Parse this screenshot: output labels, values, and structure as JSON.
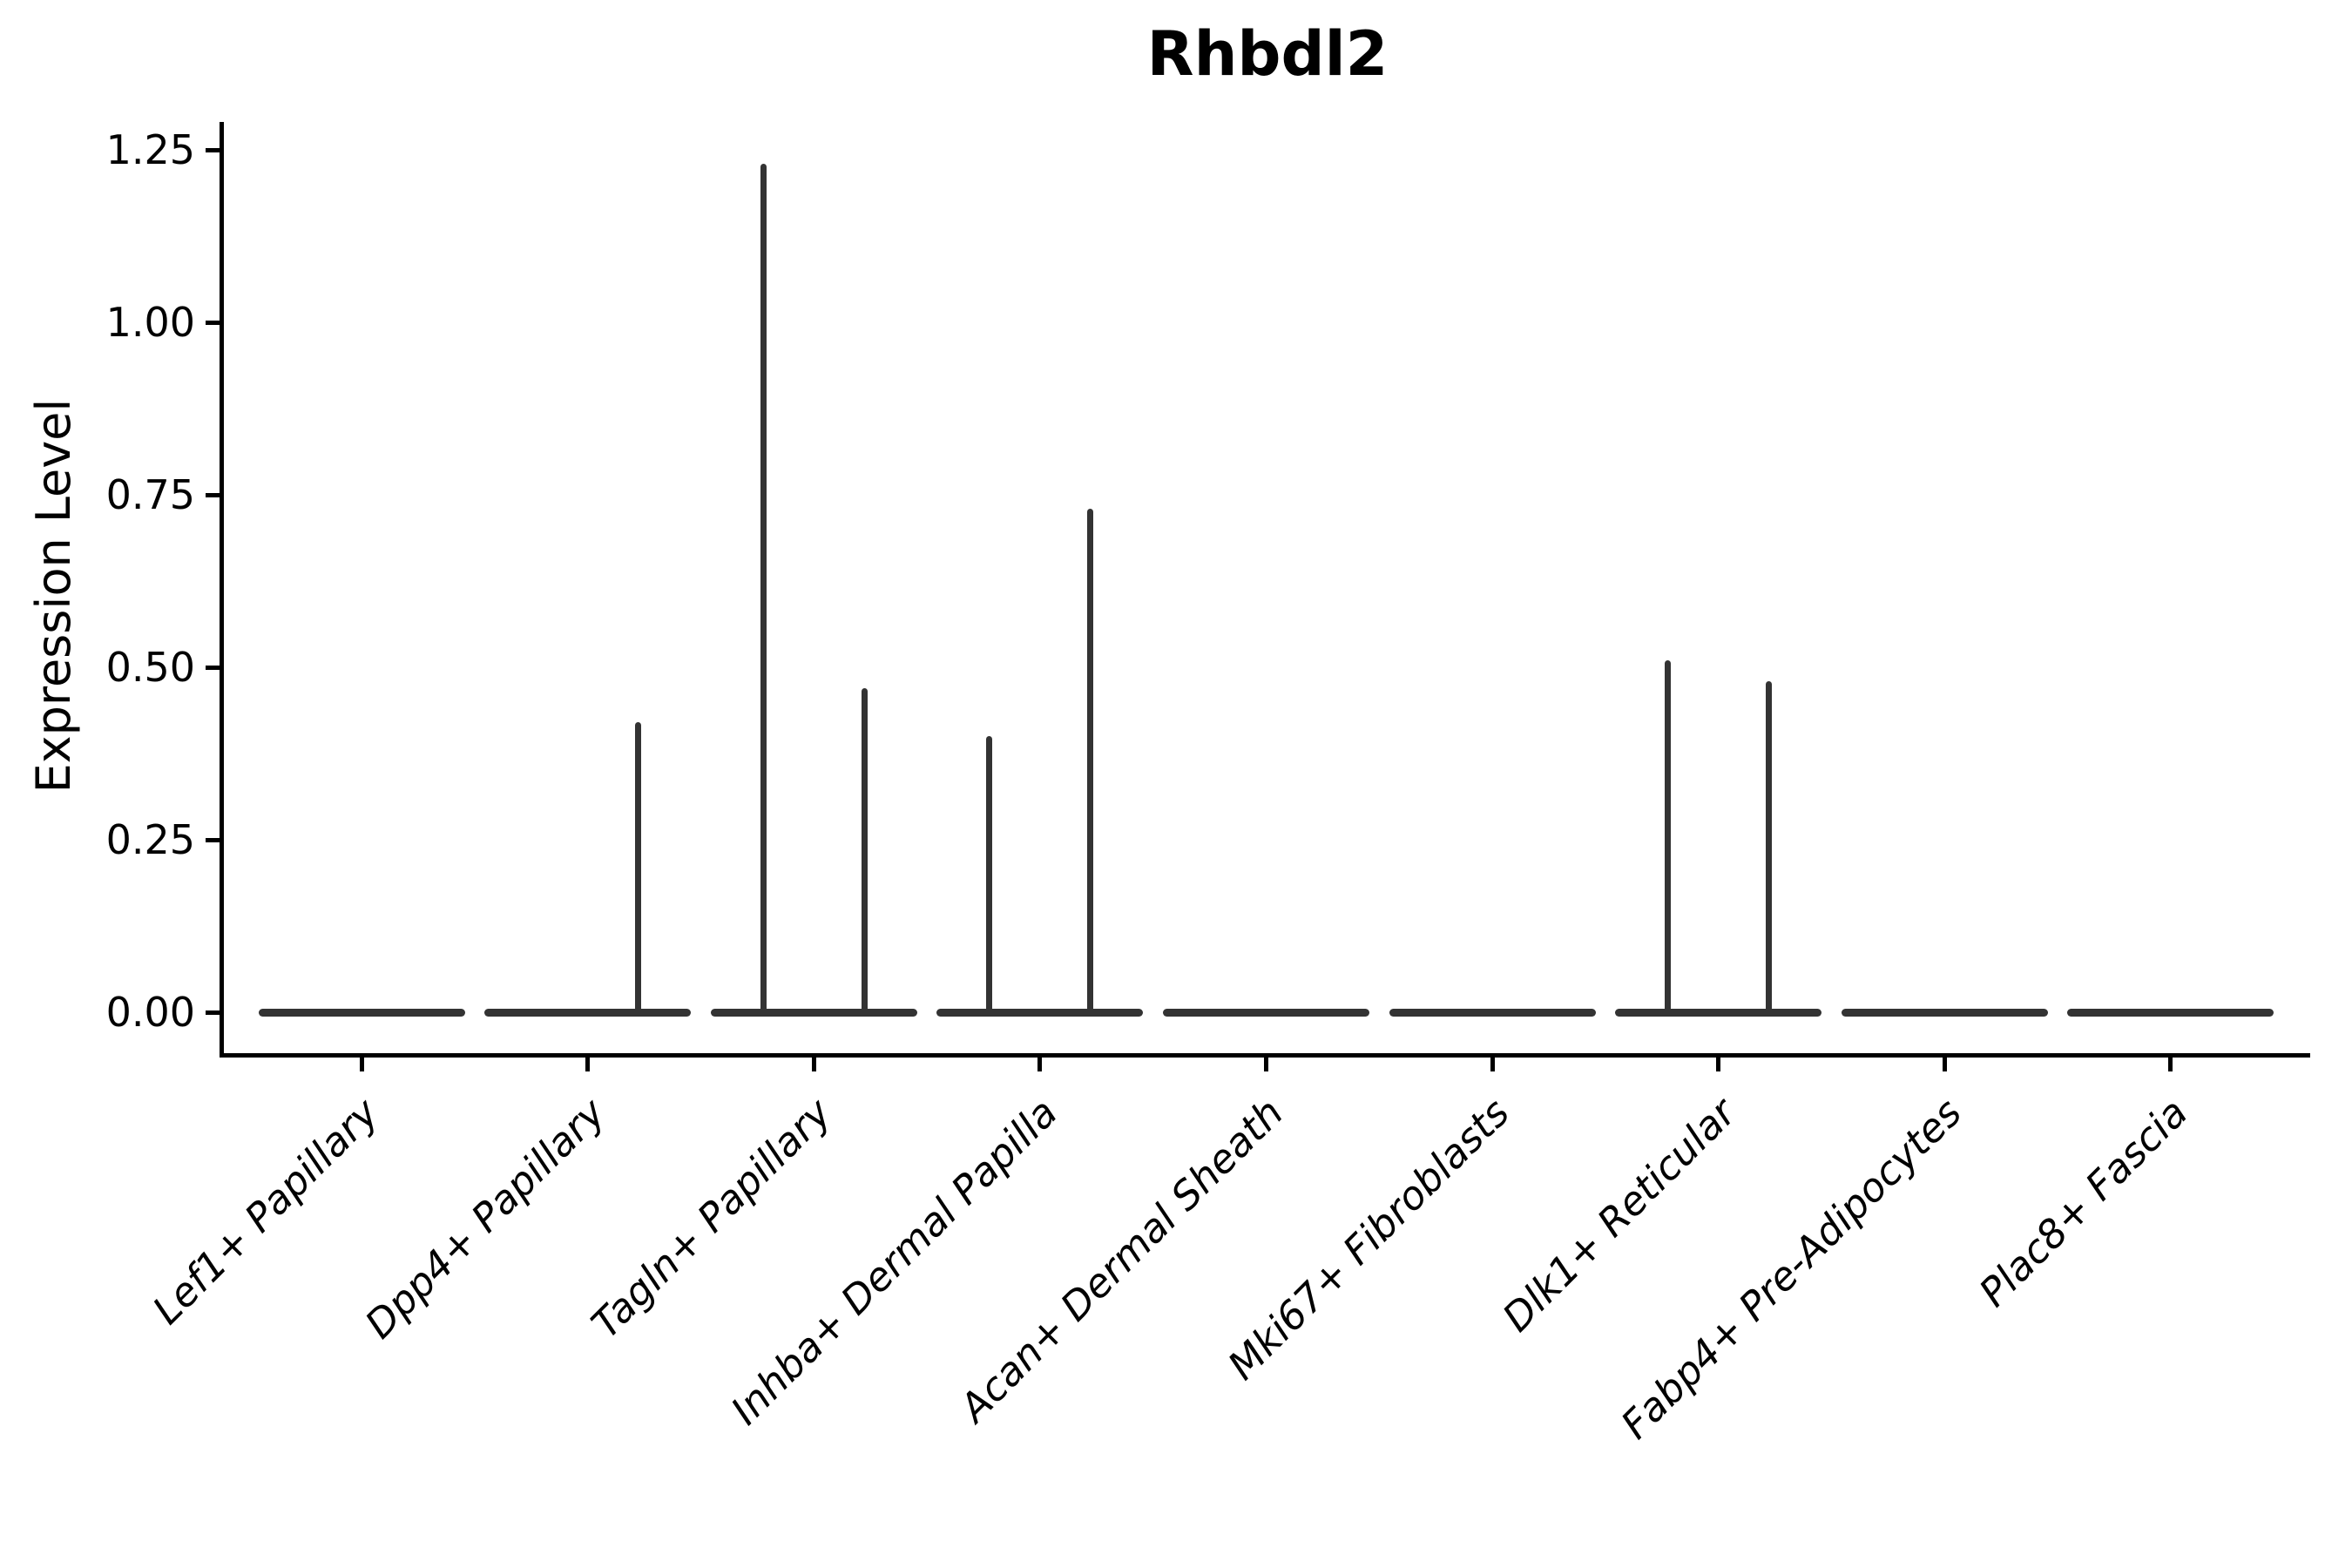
{
  "chart_data": {
    "type": "violin",
    "title": "Rhbdl2",
    "xlabel": "",
    "ylabel": "Expression Level",
    "ylim": [
      0,
      1.25
    ],
    "grid": false,
    "legend": "none",
    "yticks": [
      0.0,
      0.25,
      0.5,
      0.75,
      1.0,
      1.25
    ],
    "ytick_labels": [
      "0.00",
      "0.25",
      "0.50",
      "0.75",
      "1.00",
      "1.25"
    ],
    "categories": [
      "Lef1+ Papillary",
      "Dpp4+ Papillary",
      "Tagln+ Papillary",
      "Inhba+ Dermal Papilla",
      "Acan+ Dermal Sheath",
      "Mki67+ Fibroblasts",
      "Dlk1+ Reticular",
      "Fabp4+ Pre-Adipocytes",
      "Plac8+ Fascia"
    ],
    "violins": [
      {
        "category": "Lef1+ Papillary",
        "baseline_value": 0,
        "spikes": []
      },
      {
        "category": "Dpp4+ Papillary",
        "baseline_value": 0,
        "spikes": [
          {
            "side": "right",
            "max": 0.42
          }
        ]
      },
      {
        "category": "Tagln+ Papillary",
        "baseline_value": 0,
        "spikes": [
          {
            "side": "left",
            "max": 1.23
          },
          {
            "side": "right",
            "max": 0.47
          }
        ]
      },
      {
        "category": "Inhba+ Dermal Papilla",
        "baseline_value": 0,
        "spikes": [
          {
            "side": "left",
            "max": 0.4
          },
          {
            "side": "right",
            "max": 0.73
          }
        ]
      },
      {
        "category": "Acan+ Dermal Sheath",
        "baseline_value": 0,
        "spikes": []
      },
      {
        "category": "Mki67+ Fibroblasts",
        "baseline_value": 0,
        "spikes": []
      },
      {
        "category": "Dlk1+ Reticular",
        "baseline_value": 0,
        "spikes": [
          {
            "side": "left",
            "max": 0.51
          },
          {
            "side": "right",
            "max": 0.48
          }
        ]
      },
      {
        "category": "Fabp4+ Pre-Adipocytes",
        "baseline_value": 0,
        "spikes": []
      },
      {
        "category": "Plac8+ Fascia",
        "baseline_value": 0,
        "spikes": []
      }
    ],
    "colors": {
      "violin": "#333333",
      "axis": "#000000",
      "text": "#000000",
      "background": "#ffffff"
    }
  }
}
